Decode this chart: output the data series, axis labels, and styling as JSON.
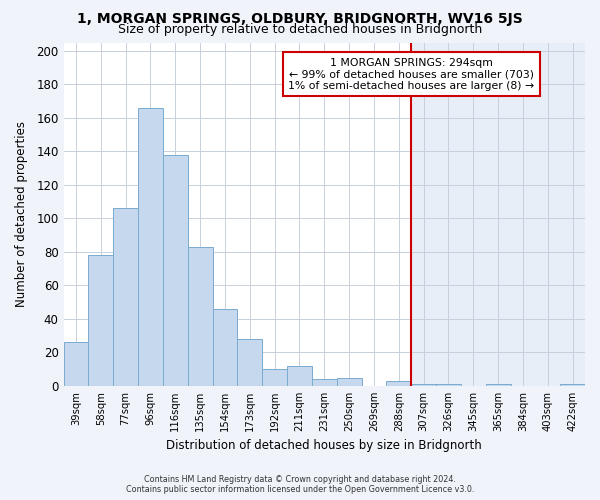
{
  "title": "1, MORGAN SPRINGS, OLDBURY, BRIDGNORTH, WV16 5JS",
  "subtitle": "Size of property relative to detached houses in Bridgnorth",
  "xlabel": "Distribution of detached houses by size in Bridgnorth",
  "ylabel": "Number of detached properties",
  "bar_labels": [
    "39sqm",
    "58sqm",
    "77sqm",
    "96sqm",
    "116sqm",
    "135sqm",
    "154sqm",
    "173sqm",
    "192sqm",
    "211sqm",
    "231sqm",
    "250sqm",
    "269sqm",
    "288sqm",
    "307sqm",
    "326sqm",
    "345sqm",
    "365sqm",
    "384sqm",
    "403sqm",
    "422sqm"
  ],
  "bar_values": [
    26,
    78,
    106,
    166,
    138,
    83,
    46,
    28,
    10,
    12,
    4,
    5,
    0,
    3,
    1,
    1,
    0,
    1,
    0,
    0,
    1
  ],
  "bar_color": "#c5d8ed",
  "bar_edge_color": "#7aabcf",
  "vline_x": 13.5,
  "vline_color": "#cc0000",
  "annotation_title": "1 MORGAN SPRINGS: 294sqm",
  "annotation_line1": "← 99% of detached houses are smaller (703)",
  "annotation_line2": "1% of semi-detached houses are larger (8) →",
  "annotation_box_edge": "#cc0000",
  "ylim": [
    0,
    205
  ],
  "yticks": [
    0,
    20,
    40,
    60,
    80,
    100,
    120,
    140,
    160,
    180,
    200
  ],
  "footnote1": "Contains HM Land Registry data © Crown copyright and database right 2024.",
  "footnote2": "Contains public sector information licensed under the Open Government Licence v3.0.",
  "bg_color_left": "#ffffff",
  "bg_color_right": "#e8eef8",
  "bg_color_fig": "#f0f4fa",
  "grid_color": "#c8d0dc",
  "title_fontsize": 10,
  "subtitle_fontsize": 9
}
